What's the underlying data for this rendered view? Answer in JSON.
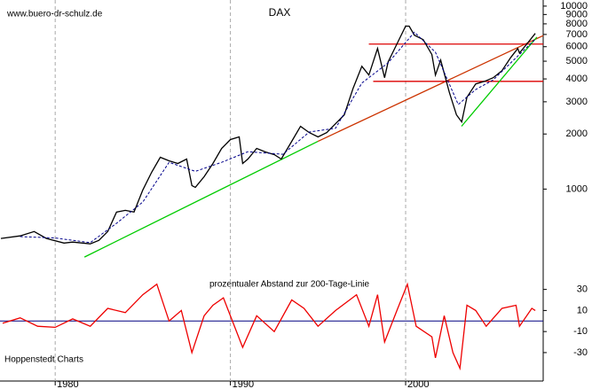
{
  "chart_data": [
    {
      "type": "line",
      "title": "DAX",
      "source": "www.buero-dr-schulz.de",
      "log_scale": true,
      "grid": true,
      "xlim": [
        1976.85,
        2007.85
      ],
      "ylim": [
        360,
        10800
      ],
      "xticks": [
        1980,
        1990,
        2000
      ],
      "yticks": [
        1000,
        2000,
        3000,
        4000,
        5000,
        6000,
        7000,
        8000,
        9000,
        10000
      ],
      "x": [
        1976.9,
        1978,
        1978.8,
        1979.5,
        1980.5,
        1981,
        1982,
        1982.5,
        1983,
        1983.5,
        1984,
        1984.5,
        1985,
        1985.5,
        1986,
        1986.5,
        1987,
        1987.5,
        1987.8,
        1988,
        1988.5,
        1989,
        1989.5,
        1990,
        1990.5,
        1990.7,
        1991,
        1991.5,
        1992,
        1992.5,
        1992.9,
        1993.5,
        1994,
        1994.5,
        1995,
        1995.5,
        1996,
        1996.5,
        1997,
        1997.5,
        1997.9,
        1998.4,
        1998.8,
        1999,
        1999.5,
        2000,
        2000.2,
        2000.5,
        2001,
        2001.5,
        2001.7,
        2002,
        2002.5,
        2002.9,
        2003.2,
        2003.5,
        2004,
        2004.5,
        2005,
        2005.5,
        2006,
        2006.4,
        2006.5,
        2007,
        2007.4
      ],
      "series": [
        {
          "color": "#000000",
          "values": [
            537,
            555,
            586,
            537,
            507,
            513,
            502,
            525,
            586,
            749,
            765,
            749,
            989,
            1235,
            1492,
            1427,
            1380,
            1459,
            1045,
            1022,
            1169,
            1380,
            1668,
            1864,
            1928,
            1380,
            1459,
            1668,
            1596,
            1543,
            1459,
            1823,
            2201,
            2037,
            1928,
            2037,
            2277,
            2545,
            3553,
            4692,
            4202,
            5870,
            4061,
            4961,
            6209,
            7773,
            7773,
            6935,
            6560,
            5431,
            4202,
            5073,
            3362,
            2545,
            2327,
            3179,
            3755,
            3880,
            4061,
            4441,
            5243,
            5870,
            5543,
            6349,
            7092
          ]
        },
        {
          "color": "#00008b",
          "dashed": true,
          "x": [
            1978,
            1980,
            1982,
            1983.5,
            1985,
            1986.5,
            1988,
            1989.5,
            1991,
            1993,
            1994.5,
            1996,
            1997.5,
            1999,
            2000.5,
            2001.7,
            2003,
            2004,
            2005,
            2006,
            2007.4
          ],
          "values": [
            550,
            540,
            510,
            650,
            850,
            1400,
            1250,
            1400,
            1600,
            1550,
            2050,
            2150,
            3800,
            4900,
            7200,
            5600,
            2900,
            3500,
            3950,
            4900,
            6600
          ]
        }
      ],
      "trendlines": [
        {
          "color": "#00cc00",
          "x": [
            1981.67,
            1994.99
          ],
          "y": [
            425,
            1823
          ]
        },
        {
          "color": "#cc3300",
          "x": [
            1994.99,
            2007.85
          ],
          "y": [
            1823,
            6900
          ]
        },
        {
          "color": "#dd0000",
          "x": [
            1997.9,
            2007.85
          ],
          "y": [
            6200,
            6200
          ]
        },
        {
          "color": "#dd0000",
          "x": [
            1998.15,
            2007.85
          ],
          "y": [
            3880,
            3880
          ]
        },
        {
          "color": "#00cc00",
          "x": [
            2003.19,
            2007.49
          ],
          "y": [
            2204,
            6770
          ]
        }
      ]
    },
    {
      "type": "line",
      "title": "prozentualer Abstand zur 200-Tage-Linie",
      "source": "Hoppenstedt Charts",
      "xlim": [
        1976.85,
        2007.85
      ],
      "ylim": [
        -57,
        44
      ],
      "xticks": [
        1980,
        1990,
        2000
      ],
      "yticks": [
        30,
        10,
        -10,
        -30
      ],
      "reference_line": {
        "value": 0,
        "color": "#000080"
      },
      "x": [
        1977,
        1978,
        1979,
        1980,
        1981,
        1982,
        1983,
        1984,
        1985,
        1985.8,
        1986.5,
        1987.2,
        1987.8,
        1988.5,
        1989,
        1989.6,
        1990.7,
        1991.5,
        1992.5,
        1993.5,
        1994.2,
        1995,
        1996,
        1997.2,
        1997.9,
        1998.4,
        1998.8,
        1999.5,
        2000.1,
        2000.6,
        2001.5,
        2001.7,
        2002.2,
        2002.7,
        2003.1,
        2003.5,
        2004,
        2004.6,
        2005.5,
        2006.3,
        2006.5,
        2007.2,
        2007.4
      ],
      "series": [
        {
          "color": "#ee0000",
          "values": [
            -2,
            3,
            -5,
            -6,
            2,
            -5,
            12,
            8,
            25,
            35,
            0,
            10,
            -30,
            5,
            15,
            22,
            -25,
            5,
            -10,
            20,
            12,
            -5,
            10,
            25,
            -5,
            25,
            -20,
            10,
            35,
            -5,
            -15,
            -35,
            5,
            -30,
            -45,
            15,
            10,
            -5,
            12,
            15,
            -5,
            12,
            10
          ]
        }
      ]
    }
  ]
}
